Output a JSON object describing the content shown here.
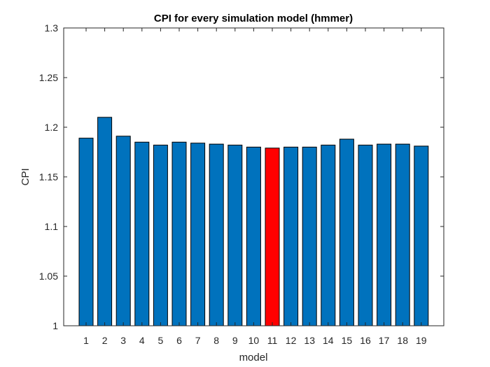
{
  "chart_data": {
    "type": "bar",
    "title": "CPI for every simulation model (hmmer)",
    "xlabel": "model",
    "ylabel": "CPI",
    "ylim": [
      1,
      1.3
    ],
    "yticks": [
      1,
      1.05,
      1.1,
      1.15,
      1.2,
      1.25,
      1.3
    ],
    "categories": [
      "1",
      "2",
      "3",
      "4",
      "5",
      "6",
      "7",
      "8",
      "9",
      "10",
      "11",
      "12",
      "13",
      "14",
      "15",
      "16",
      "17",
      "18",
      "19"
    ],
    "values": [
      1.189,
      1.21,
      1.191,
      1.185,
      1.182,
      1.185,
      1.184,
      1.183,
      1.182,
      1.18,
      1.179,
      1.18,
      1.18,
      1.182,
      1.188,
      1.182,
      1.183,
      1.183,
      1.181
    ],
    "highlight_index": 10,
    "grid": false,
    "colors": {
      "bar": "#0072BD",
      "highlight": "#FF0000",
      "bar_edge": "#000000",
      "axes": "#262626"
    }
  }
}
